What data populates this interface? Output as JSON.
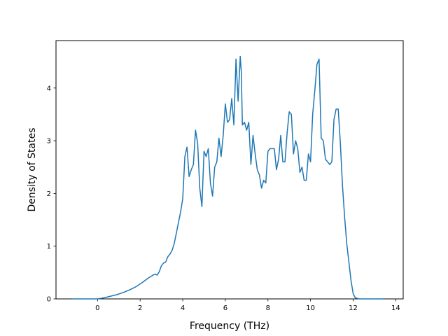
{
  "chart_data": {
    "type": "line",
    "title": "",
    "xlabel": "Frequency (THz)",
    "ylabel": "Density of States",
    "xlim": [
      -1.95,
      14.35
    ],
    "ylim": [
      0,
      4.9
    ],
    "xticks": [
      0,
      2,
      4,
      6,
      8,
      10,
      12,
      14
    ],
    "xtick_labels": [
      "0",
      "2",
      "4",
      "6",
      "8",
      "10",
      "12",
      "14"
    ],
    "yticks": [
      0,
      1,
      2,
      3,
      4
    ],
    "ytick_labels": [
      "0",
      "1",
      "2",
      "3",
      "4"
    ],
    "grid": false,
    "line_color": "#1f77b4",
    "series": [
      {
        "x": [
          -1.2,
          0.0,
          0.3,
          0.6,
          0.9,
          1.2,
          1.5,
          1.8,
          2.1,
          2.4,
          2.6,
          2.7,
          2.8,
          2.9,
          3.0,
          3.1,
          3.2,
          3.3,
          3.4,
          3.5,
          3.6,
          3.7,
          3.8,
          3.9,
          4.0,
          4.05,
          4.1,
          4.2,
          4.3,
          4.4,
          4.5,
          4.6,
          4.7,
          4.8,
          4.9,
          5.0,
          5.1,
          5.2,
          5.3,
          5.4,
          5.5,
          5.6,
          5.7,
          5.8,
          5.9,
          6.0,
          6.1,
          6.2,
          6.3,
          6.4,
          6.5,
          6.6,
          6.7,
          6.75,
          6.8,
          6.9,
          7.0,
          7.1,
          7.2,
          7.3,
          7.4,
          7.5,
          7.6,
          7.7,
          7.8,
          7.9,
          8.0,
          8.1,
          8.2,
          8.3,
          8.4,
          8.5,
          8.6,
          8.7,
          8.8,
          8.9,
          9.0,
          9.1,
          9.2,
          9.3,
          9.4,
          9.5,
          9.6,
          9.7,
          9.8,
          9.9,
          10.0,
          10.1,
          10.2,
          10.3,
          10.4,
          10.5,
          10.6,
          10.7,
          10.8,
          10.9,
          11.0,
          11.1,
          11.2,
          11.3,
          11.4,
          11.5,
          11.6,
          11.7,
          11.8,
          11.9,
          12.0,
          12.1,
          12.3,
          13.4
        ],
        "y": [
          0,
          0,
          0.02,
          0.05,
          0.08,
          0.12,
          0.17,
          0.23,
          0.31,
          0.4,
          0.45,
          0.47,
          0.45,
          0.52,
          0.63,
          0.68,
          0.7,
          0.8,
          0.85,
          0.92,
          1.05,
          1.25,
          1.45,
          1.65,
          1.9,
          2.3,
          2.7,
          2.88,
          2.32,
          2.45,
          2.55,
          3.2,
          2.95,
          2.1,
          1.75,
          2.8,
          2.7,
          2.85,
          2.2,
          1.95,
          2.5,
          2.6,
          3.05,
          2.7,
          3.1,
          3.7,
          3.35,
          3.4,
          3.8,
          3.3,
          4.55,
          3.75,
          4.6,
          4.3,
          3.3,
          3.35,
          3.2,
          3.35,
          2.55,
          3.1,
          2.75,
          2.45,
          2.35,
          2.1,
          2.25,
          2.2,
          2.8,
          2.85,
          2.85,
          2.85,
          2.45,
          2.65,
          3.1,
          2.6,
          2.6,
          3.15,
          3.55,
          3.5,
          2.75,
          3.0,
          2.85,
          2.4,
          2.5,
          2.25,
          2.25,
          2.75,
          2.6,
          3.5,
          3.95,
          4.45,
          4.55,
          3.05,
          3.0,
          2.65,
          2.6,
          2.55,
          2.6,
          3.4,
          3.6,
          3.6,
          2.95,
          2.15,
          1.55,
          1.05,
          0.7,
          0.35,
          0.1,
          0.02,
          0,
          0
        ]
      }
    ]
  }
}
